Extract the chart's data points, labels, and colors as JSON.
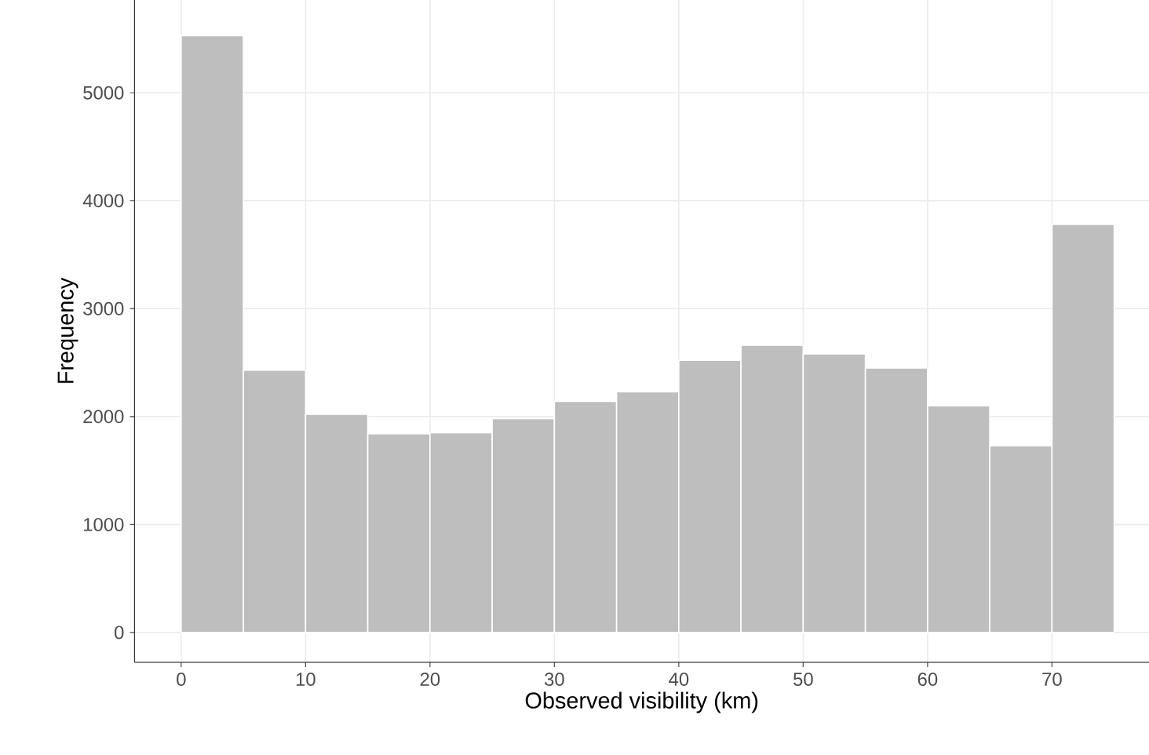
{
  "chart_data": {
    "type": "histogram",
    "xlabel": "Observed visibility (km)",
    "ylabel": "Frequency",
    "bins": [
      0,
      5,
      10,
      15,
      20,
      25,
      30,
      35,
      40,
      45,
      50,
      55,
      60,
      65,
      70,
      75
    ],
    "values": [
      5530,
      2430,
      2020,
      1840,
      1850,
      1980,
      2140,
      2230,
      2520,
      2660,
      2580,
      2450,
      2100,
      1730,
      3780
    ],
    "color": "#bebebe",
    "xlim": [
      -3.75,
      77.8
    ],
    "ylim": [
      -277,
      5860
    ],
    "xticks": [
      0,
      10,
      20,
      30,
      40,
      50,
      60,
      70
    ],
    "yticks": [
      0,
      1000,
      2000,
      3000,
      4000,
      5000
    ],
    "grid": true
  }
}
